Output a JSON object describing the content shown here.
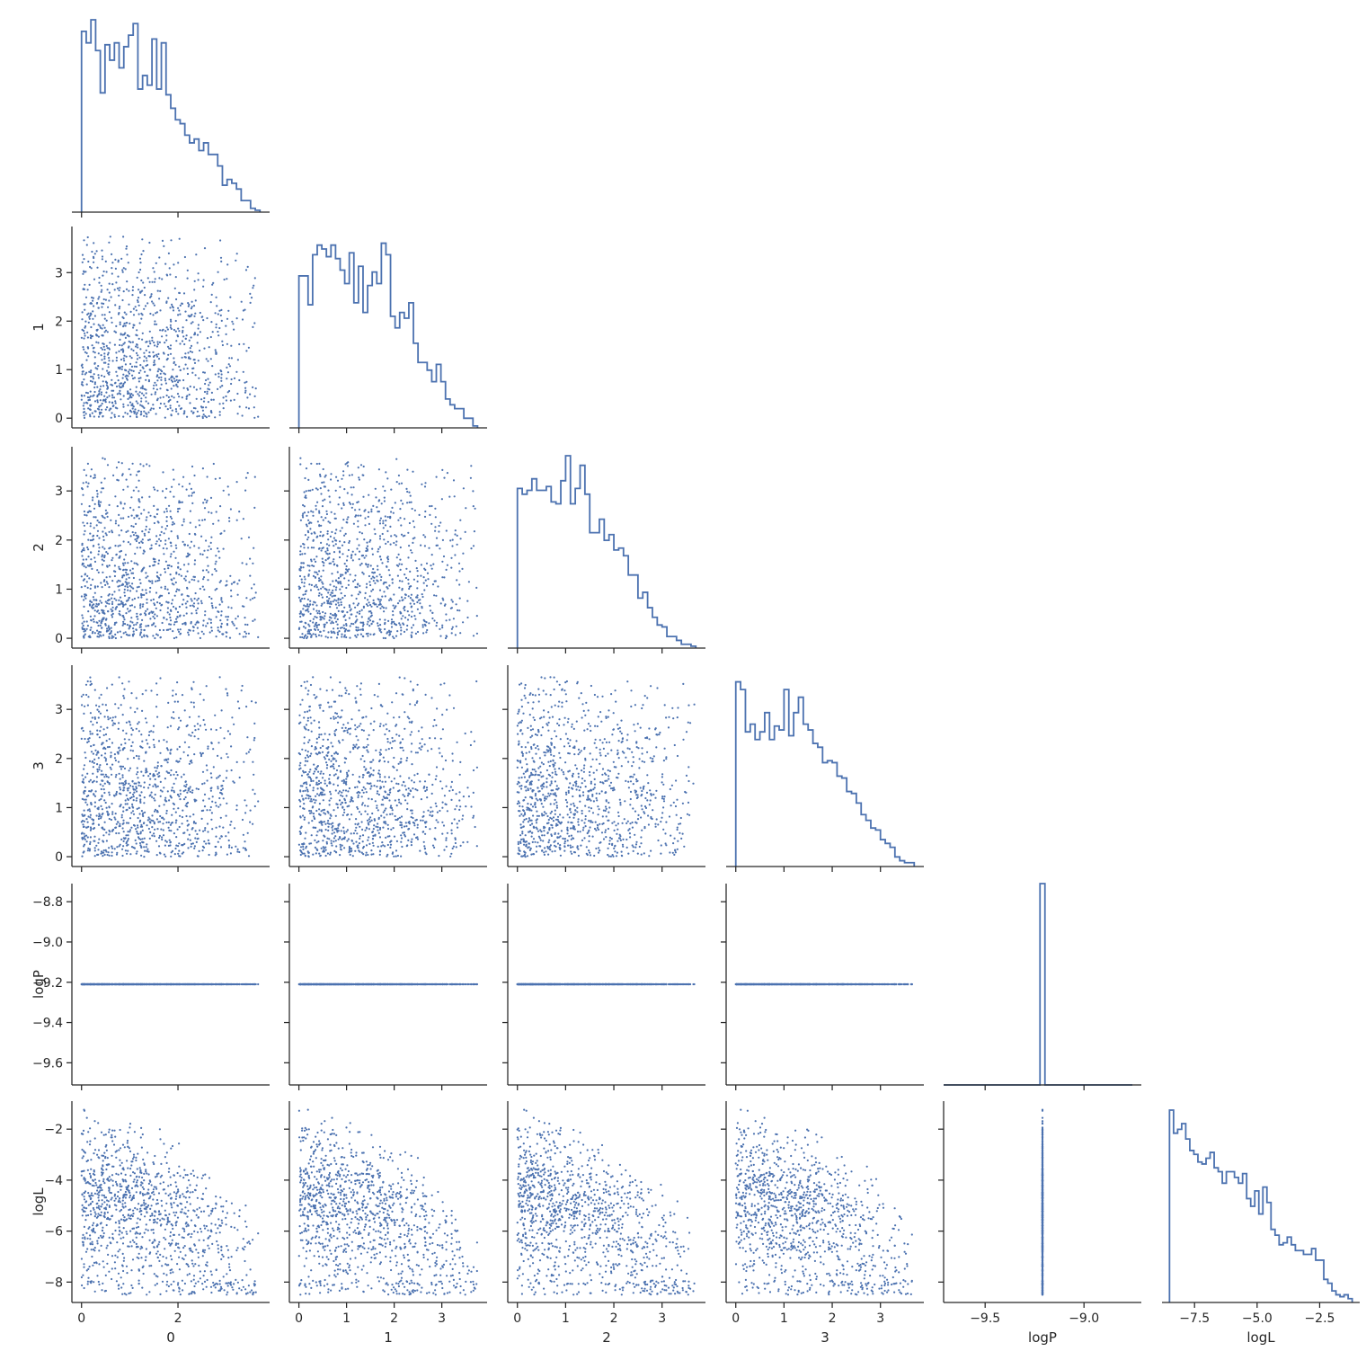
{
  "chart_data": {
    "type": "scatter",
    "variables": [
      "0",
      "1",
      "2",
      "3",
      "logP",
      "logL"
    ],
    "layout": "corner",
    "diagonal": "histogram-step",
    "off_diagonal": "scatter",
    "color": "#4c72b0",
    "grid": false,
    "sample_size": 1500,
    "variable_ranges": {
      "0": [
        0,
        3.7
      ],
      "1": [
        0,
        3.75
      ],
      "2": [
        0,
        3.7
      ],
      "3": [
        0,
        3.7
      ],
      "logP": [
        -9.21,
        -9.21
      ],
      "logL": [
        -8.5,
        -1.2
      ]
    },
    "axis_limits": {
      "0": [
        -0.2,
        3.9
      ],
      "1": [
        -0.2,
        3.95
      ],
      "2": [
        -0.2,
        3.9
      ],
      "3": [
        -0.2,
        3.9
      ],
      "logP": [
        -9.71,
        -8.71
      ],
      "logL": [
        -8.8,
        -0.9
      ]
    },
    "histograms": {
      "0": [
        0.94,
        0.88,
        1.0,
        0.84,
        0.62,
        0.87,
        0.79,
        0.88,
        0.75,
        0.86,
        0.92,
        0.98,
        0.64,
        0.71,
        0.66,
        0.9,
        0.64,
        0.88,
        0.61,
        0.54,
        0.48,
        0.46,
        0.4,
        0.36,
        0.38,
        0.32,
        0.36,
        0.3,
        0.3,
        0.24,
        0.14,
        0.17,
        0.15,
        0.12,
        0.06,
        0.06,
        0.02,
        0.01
      ],
      "1": [
        0.79,
        0.79,
        0.64,
        0.9,
        0.95,
        0.93,
        0.89,
        0.95,
        0.88,
        0.82,
        0.75,
        0.91,
        0.65,
        0.84,
        0.6,
        0.74,
        0.81,
        0.75,
        0.96,
        0.9,
        0.58,
        0.52,
        0.6,
        0.57,
        0.65,
        0.44,
        0.34,
        0.34,
        0.3,
        0.24,
        0.33,
        0.24,
        0.15,
        0.12,
        0.1,
        0.1,
        0.05,
        0.05,
        0.01
      ],
      "2": [
        0.83,
        0.8,
        0.82,
        0.88,
        0.82,
        0.82,
        0.84,
        0.76,
        0.75,
        0.87,
        1.0,
        0.75,
        0.83,
        0.95,
        0.8,
        0.6,
        0.6,
        0.67,
        0.56,
        0.59,
        0.51,
        0.52,
        0.48,
        0.38,
        0.38,
        0.26,
        0.29,
        0.21,
        0.16,
        0.12,
        0.11,
        0.06,
        0.06,
        0.04,
        0.02,
        0.02,
        0.01
      ],
      "3": [
        0.96,
        0.92,
        0.7,
        0.74,
        0.66,
        0.7,
        0.8,
        0.66,
        0.73,
        0.71,
        0.92,
        0.68,
        0.8,
        0.88,
        0.74,
        0.71,
        0.64,
        0.62,
        0.54,
        0.55,
        0.54,
        0.47,
        0.46,
        0.39,
        0.38,
        0.33,
        0.27,
        0.24,
        0.2,
        0.19,
        0.14,
        0.12,
        0.1,
        0.05,
        0.03,
        0.02,
        0.02
      ],
      "logP": {
        "peak_at": -9.21,
        "bin_width": 0.025
      },
      "logL": [
        1.0,
        0.88,
        0.9,
        0.93,
        0.85,
        0.79,
        0.77,
        0.73,
        0.72,
        0.75,
        0.78,
        0.7,
        0.68,
        0.62,
        0.68,
        0.68,
        0.65,
        0.62,
        0.67,
        0.54,
        0.5,
        0.58,
        0.46,
        0.6,
        0.52,
        0.38,
        0.35,
        0.3,
        0.31,
        0.34,
        0.3,
        0.27,
        0.27,
        0.25,
        0.25,
        0.28,
        0.22,
        0.22,
        0.12,
        0.1,
        0.06,
        0.04,
        0.03,
        0.04,
        0.02
      ]
    },
    "ticks": {
      "0": [
        "0",
        "2"
      ],
      "1": [
        "0",
        "1",
        "2",
        "3"
      ],
      "2": [
        "0",
        "1",
        "2",
        "3"
      ],
      "3": [
        "0",
        "1",
        "2",
        "3"
      ],
      "logP": [
        "−9.5",
        "−9.0"
      ],
      "logP_y": [
        "−8.8",
        "−9.0",
        "−9.2",
        "−9.4",
        "−9.6"
      ],
      "logL": [
        "−7.5",
        "−5.0",
        "−2.5"
      ],
      "logL_y": [
        "−2",
        "−4",
        "−6",
        "−8"
      ]
    },
    "xlabels": [
      "0",
      "1",
      "2",
      "3",
      "logP",
      "logL"
    ],
    "ylabels": [
      "1",
      "2",
      "3",
      "logP",
      "logL"
    ]
  }
}
